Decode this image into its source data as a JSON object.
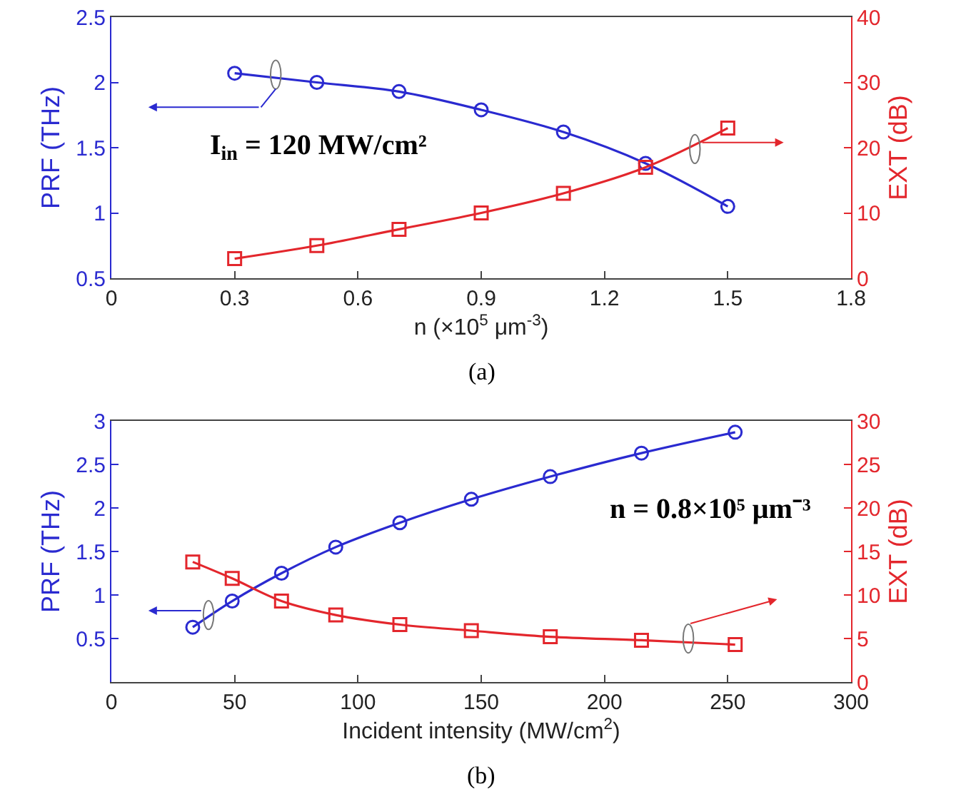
{
  "chart_data": [
    {
      "type": "line",
      "xlabel": "n (×10$^{5}$ μm$^{-3}$)",
      "ylabel": "PRF (THz)",
      "y2label": "EXT (dB)",
      "x": [
        0.3,
        0.5,
        0.7,
        0.9,
        1.1,
        1.3,
        1.5
      ],
      "series": [
        {
          "color": "#2a2ad0",
          "marker": "circle",
          "values": [
            2.07,
            2.0,
            1.93,
            1.79,
            1.62,
            1.38,
            1.05
          ]
        },
        {
          "color": "#e3262c",
          "marker": "square",
          "axis": "y2",
          "values": [
            3.0,
            5.0,
            7.5,
            10.0,
            13.0,
            17.0,
            23.0
          ]
        }
      ],
      "xlim": [
        0,
        1.8
      ],
      "xticks": [
        0,
        0.3,
        0.6,
        0.9,
        1.2,
        1.5,
        1.8
      ],
      "ylim": [
        0.5,
        2.5
      ],
      "yticks": [
        0.5,
        1,
        1.5,
        2,
        2.5
      ],
      "y2lim": [
        0,
        40
      ],
      "y2ticks": [
        0,
        10,
        20,
        30,
        40
      ],
      "grid": false,
      "annotations": [
        "I$_{in}$ = 120 MW/cm²",
        "(a)"
      ]
    },
    {
      "type": "line",
      "xlabel": "Incident intensity (MW/cm$^{2}$)",
      "ylabel": "PRF (THz)",
      "y2label": "EXT (dB)",
      "x": [
        33,
        49,
        69,
        91,
        117,
        146,
        178,
        215,
        253
      ],
      "series": [
        {
          "color": "#2a2ad0",
          "marker": "circle",
          "values": [
            0.63,
            0.93,
            1.25,
            1.55,
            1.83,
            2.1,
            2.36,
            2.63,
            2.87
          ]
        },
        {
          "color": "#e3262c",
          "marker": "square",
          "axis": "y2",
          "values": [
            13.8,
            11.9,
            9.3,
            7.7,
            6.6,
            5.9,
            5.2,
            4.8,
            4.3
          ]
        }
      ],
      "xlim": [
        0,
        300
      ],
      "xticks": [
        0,
        50,
        100,
        150,
        200,
        250,
        300
      ],
      "ylim": [
        0,
        3
      ],
      "yticks": [
        0.5,
        1,
        1.5,
        2,
        2.5,
        3
      ],
      "y2lim": [
        0,
        30
      ],
      "y2ticks": [
        0,
        5,
        10,
        15,
        20,
        25,
        30
      ],
      "grid": false,
      "annotations": [
        "n = 0.8×10⁵ μm⁻³",
        "(b)"
      ]
    }
  ]
}
